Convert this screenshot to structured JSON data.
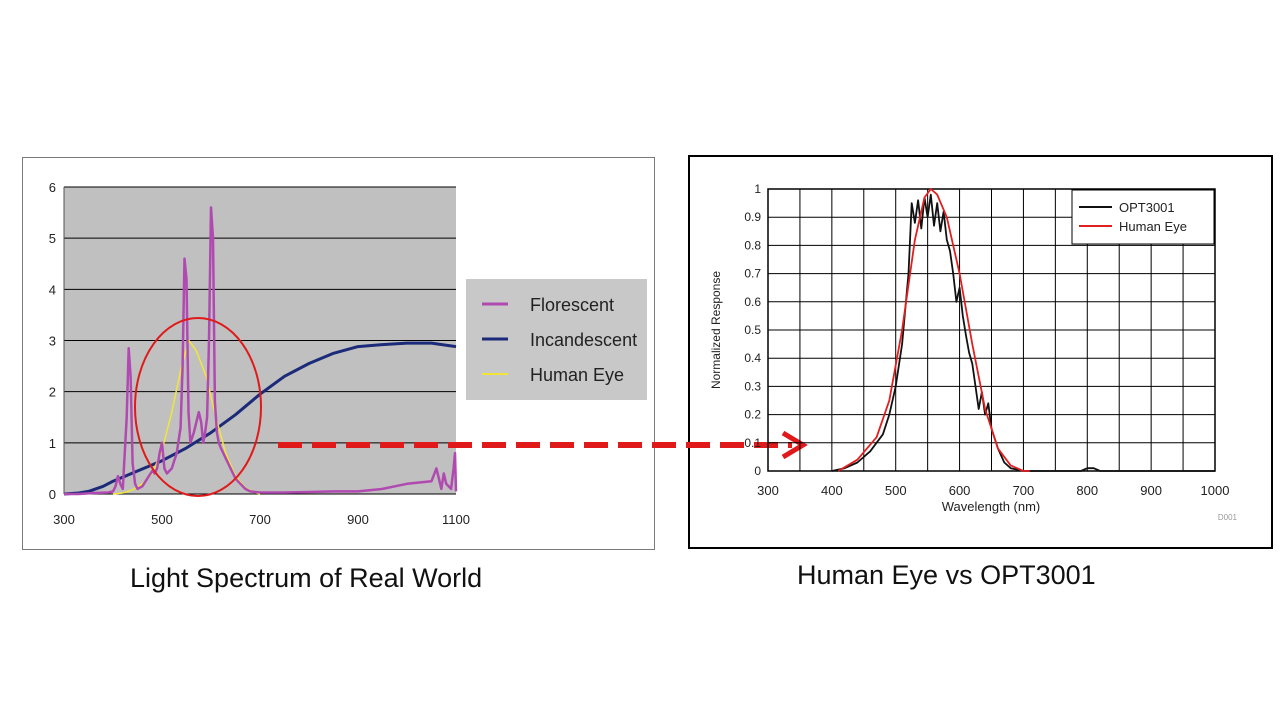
{
  "colors": {
    "left_plot_bg": "#c0c0c0",
    "florescent": "#b04ab0",
    "incandescent": "#1c2a7a",
    "human_eye_left": "#f2e53a",
    "opt3001": "#111111",
    "human_eye_right": "#e02020",
    "annotation_red": "#e01a1a"
  },
  "captions": {
    "left": "Light Spectrum of Real World",
    "right": "Human Eye vs OPT3001"
  },
  "chart_data": [
    {
      "type": "line",
      "title": "",
      "xlabel": "",
      "ylabel": "",
      "xlim": [
        300,
        1100
      ],
      "ylim": [
        0,
        6
      ],
      "x_ticks": [
        "300",
        "500",
        "700",
        "900",
        "1100"
      ],
      "y_ticks": [
        "0",
        "1",
        "2",
        "3",
        "4",
        "5",
        "6"
      ],
      "grid": "horizontal",
      "legend": "right",
      "legend_entries": [
        "Florescent",
        "Incandescent",
        "Human Eye"
      ],
      "series": [
        {
          "name": "Florescent",
          "x": [
            300,
            330,
            360,
            390,
            400,
            405,
            410,
            415,
            420,
            428,
            432,
            436,
            440,
            445,
            450,
            460,
            470,
            480,
            485,
            490,
            495,
            500,
            505,
            510,
            520,
            530,
            538,
            542,
            546,
            550,
            554,
            558,
            565,
            570,
            575,
            580,
            584,
            588,
            592,
            596,
            600,
            604,
            608,
            612,
            616,
            620,
            630,
            640,
            650,
            660,
            670,
            680,
            690,
            700,
            720,
            750,
            800,
            850,
            900,
            950,
            1000,
            1050,
            1060,
            1065,
            1070,
            1075,
            1080,
            1090,
            1095,
            1098,
            1100
          ],
          "y": [
            0,
            0,
            0.02,
            0.03,
            0.05,
            0.15,
            0.35,
            0.2,
            0.1,
            1.5,
            2.85,
            2.3,
            0.6,
            0.2,
            0.1,
            0.15,
            0.3,
            0.45,
            0.4,
            0.5,
            0.8,
            1.0,
            0.5,
            0.4,
            0.5,
            0.8,
            1.3,
            2.5,
            4.6,
            4.2,
            1.6,
            1.0,
            1.2,
            1.4,
            1.6,
            1.4,
            1.0,
            1.2,
            1.5,
            3.0,
            5.6,
            5.0,
            1.8,
            1.2,
            1.0,
            0.9,
            0.7,
            0.5,
            0.3,
            0.2,
            0.1,
            0.05,
            0.04,
            0.03,
            0.03,
            0.03,
            0.04,
            0.05,
            0.05,
            0.1,
            0.2,
            0.25,
            0.5,
            0.3,
            0.1,
            0.4,
            0.2,
            0.1,
            0.5,
            0.8,
            0.05
          ]
        },
        {
          "name": "Incandescent",
          "x": [
            300,
            330,
            350,
            380,
            400,
            450,
            500,
            550,
            600,
            650,
            700,
            750,
            800,
            850,
            900,
            950,
            1000,
            1050,
            1100
          ],
          "y": [
            0,
            0.02,
            0.05,
            0.15,
            0.25,
            0.45,
            0.65,
            0.9,
            1.2,
            1.55,
            1.95,
            2.3,
            2.55,
            2.75,
            2.88,
            2.92,
            2.95,
            2.95,
            2.88
          ]
        },
        {
          "name": "Human Eye",
          "x": [
            400,
            420,
            440,
            460,
            480,
            500,
            520,
            540,
            555,
            570,
            590,
            610,
            630,
            650,
            670,
            690,
            700
          ],
          "y": [
            0,
            0.02,
            0.08,
            0.2,
            0.4,
            0.85,
            1.6,
            2.5,
            3.0,
            2.8,
            2.3,
            1.5,
            0.8,
            0.35,
            0.12,
            0.03,
            0
          ]
        }
      ],
      "annotation": "ellipse around 460–640 nm"
    },
    {
      "type": "line",
      "title": "",
      "xlabel": "Wavelength (nm)",
      "ylabel": "Normalized Response",
      "xlim": [
        300,
        1000
      ],
      "ylim": [
        0,
        1
      ],
      "x_ticks": [
        "300",
        "400",
        "500",
        "600",
        "700",
        "800",
        "900",
        "1000"
      ],
      "y_ticks": [
        "0",
        "0.1",
        "0.2",
        "0.3",
        "0.4",
        "0.5",
        "0.6",
        "0.7",
        "0.8",
        "0.9",
        "1"
      ],
      "grid": "both",
      "legend": "top-right",
      "legend_entries": [
        "OPT3001",
        "Human Eye"
      ],
      "figure_id": "D001",
      "series": [
        {
          "name": "OPT3001",
          "x": [
            400,
            420,
            440,
            460,
            480,
            490,
            500,
            510,
            520,
            525,
            530,
            535,
            540,
            545,
            550,
            555,
            560,
            565,
            570,
            575,
            580,
            585,
            590,
            595,
            600,
            605,
            610,
            615,
            620,
            625,
            630,
            635,
            640,
            645,
            650,
            660,
            670,
            680,
            700,
            750,
            790,
            800,
            810,
            820,
            830,
            850,
            900,
            1000
          ],
          "y": [
            0,
            0.01,
            0.03,
            0.07,
            0.13,
            0.2,
            0.3,
            0.45,
            0.7,
            0.95,
            0.88,
            0.96,
            0.86,
            0.97,
            0.9,
            0.98,
            0.87,
            0.95,
            0.85,
            0.92,
            0.82,
            0.78,
            0.7,
            0.6,
            0.65,
            0.55,
            0.48,
            0.42,
            0.38,
            0.3,
            0.22,
            0.28,
            0.2,
            0.24,
            0.15,
            0.08,
            0.03,
            0.01,
            0,
            0,
            0,
            0.01,
            0.01,
            0,
            0,
            0,
            0,
            0
          ]
        },
        {
          "name": "Human Eye",
          "x": [
            410,
            440,
            470,
            490,
            510,
            530,
            545,
            555,
            565,
            580,
            600,
            620,
            640,
            660,
            680,
            700,
            710
          ],
          "y": [
            0,
            0.04,
            0.12,
            0.25,
            0.5,
            0.82,
            0.97,
            1.0,
            0.98,
            0.9,
            0.7,
            0.45,
            0.22,
            0.08,
            0.02,
            0,
            0
          ]
        }
      ]
    }
  ]
}
